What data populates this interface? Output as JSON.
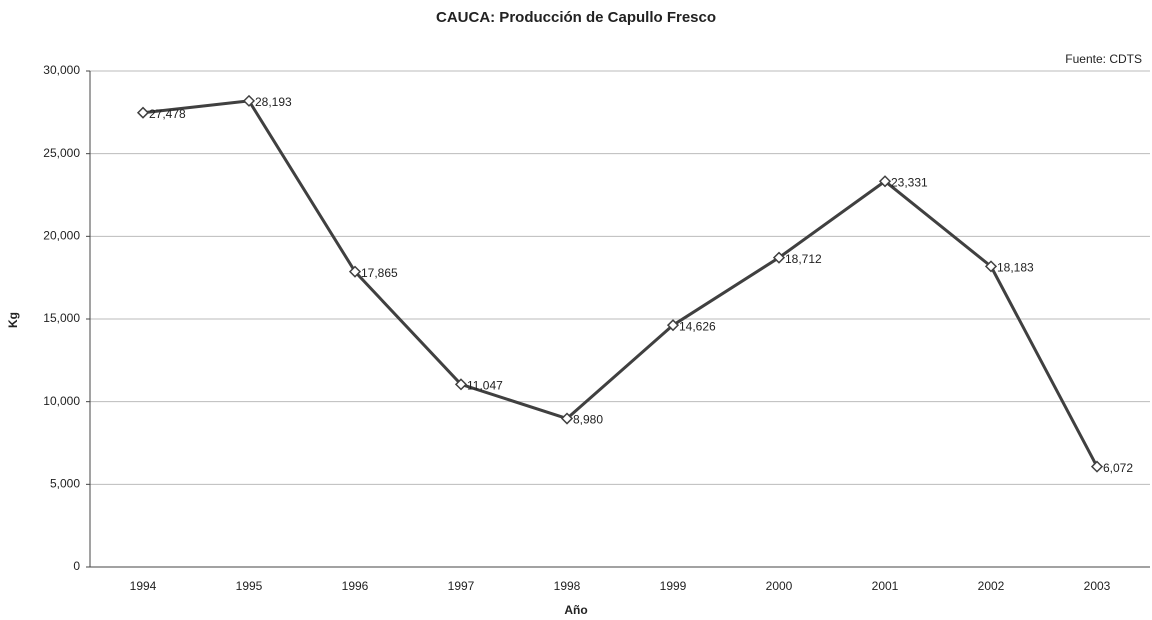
{
  "chart_data": {
    "type": "line",
    "title": "CAUCA:  Producción de Capullo Fresco",
    "annotation": "Fuente: CDTS",
    "x_label": "Año",
    "y_label": "Kg",
    "categories": [
      "1994",
      "1995",
      "1996",
      "1997",
      "1998",
      "1999",
      "2000",
      "2001",
      "2002",
      "2003"
    ],
    "series": [
      {
        "name": "Producción",
        "color": "#404040",
        "values": [
          27478,
          28193,
          17865,
          11047,
          8980,
          14626,
          18712,
          23331,
          18183,
          6072
        ],
        "value_labels": [
          "27,478",
          "28,193",
          "17,865",
          "11,047",
          "8,980",
          "14,626",
          "18,712",
          "23,331",
          "18,183",
          "6,072"
        ]
      }
    ],
    "ylim": [
      0,
      30000
    ],
    "yticks": [
      0,
      {
        "value": 5000,
        "label": "5,000"
      },
      {
        "value": 10000,
        "label": "10,000"
      },
      {
        "value": 15000,
        "label": "15,000"
      },
      {
        "value": 20000,
        "label": "20,000"
      },
      {
        "value": 25000,
        "label": "25,000"
      },
      {
        "value": 30000,
        "label": "30,000"
      }
    ],
    "grid": true
  }
}
